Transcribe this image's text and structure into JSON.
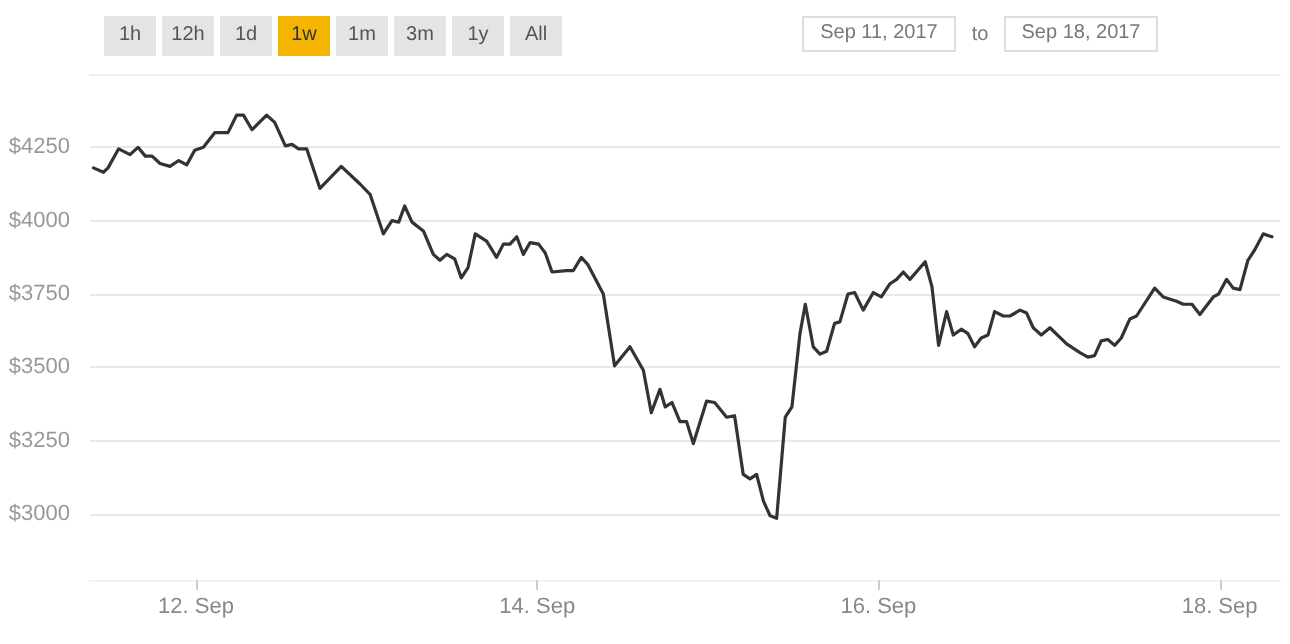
{
  "chart_data": {
    "type": "line",
    "annotations": [
      "1h",
      "12h",
      "1d",
      "1w",
      "1m",
      "3m",
      "1y",
      "All",
      "Sep 11, 2017",
      "to",
      "Sep 18, 2017"
    ],
    "xlim": [
      "2017-09-11T09:05",
      "2017-09-18T08:30"
    ],
    "xticks": [
      {
        "value": "2017-09-12",
        "label": "12. Sep"
      },
      {
        "value": "2017-09-14",
        "label": "14. Sep"
      },
      {
        "value": "2017-09-16",
        "label": "16. Sep"
      },
      {
        "value": "2017-09-18",
        "label": "18. Sep"
      }
    ],
    "ylim": [
      2775,
      4500
    ],
    "yticks": [
      {
        "value": 3000,
        "label": "$3000"
      },
      {
        "value": 3250,
        "label": "$3250"
      },
      {
        "value": 3500,
        "label": "$3500"
      },
      {
        "value": 3750,
        "label": "$3750"
      },
      {
        "value": 4000,
        "label": "$4000"
      },
      {
        "value": 4250,
        "label": "$4250"
      }
    ],
    "grid": "y",
    "marker": "none",
    "line_style": "solid",
    "series": [
      {
        "color": "#333333",
        "x": [
          "2017-09-11T09:34",
          "2017-09-11T10:58",
          "2017-09-11T11:37",
          "2017-09-11T13:07",
          "2017-09-11T14:43",
          "2017-09-11T15:50",
          "2017-09-11T16:52",
          "2017-09-11T17:49",
          "2017-09-11T18:56",
          "2017-09-11T20:20",
          "2017-09-11T21:34",
          "2017-09-11T22:41",
          "2017-09-11T23:49",
          "2017-09-12T01:02",
          "2017-09-12T02:38",
          "2017-09-12T04:30",
          "2017-09-12T05:43",
          "2017-09-12T06:40",
          "2017-09-12T07:53",
          "2017-09-12T09:56",
          "2017-09-12T11:04",
          "2017-09-12T12:34",
          "2017-09-12T13:30",
          "2017-09-12T14:26",
          "2017-09-12T15:34",
          "2017-09-12T17:26",
          "2017-09-12T20:26",
          "2017-09-12T23:04",
          "2017-09-13T00:29",
          "2017-09-13T02:21",
          "2017-09-13T03:34",
          "2017-09-13T04:31",
          "2017-09-13T05:21",
          "2017-09-13T06:23",
          "2017-09-13T07:59",
          "2017-09-13T09:23",
          "2017-09-13T10:19",
          "2017-09-13T11:16",
          "2017-09-13T12:23",
          "2017-09-13T13:19",
          "2017-09-13T14:16",
          "2017-09-13T15:17",
          "2017-09-13T16:53",
          "2017-09-13T18:17",
          "2017-09-13T19:14",
          "2017-09-13T20:10",
          "2017-09-13T21:07",
          "2017-09-13T22:03",
          "2017-09-13T22:59",
          "2017-09-14T00:12",
          "2017-09-14T01:08",
          "2017-09-14T02:05",
          "2017-09-14T04:08",
          "2017-09-14T05:05",
          "2017-09-14T06:12",
          "2017-09-14T07:08",
          "2017-09-14T09:18",
          "2017-09-14T10:53",
          "2017-09-14T13:03",
          "2017-09-14T14:56",
          "2017-09-14T16:03",
          "2017-09-14T17:16",
          "2017-09-14T18:01",
          "2017-09-14T18:58",
          "2017-09-14T20:05",
          "2017-09-14T21:01",
          "2017-09-14T21:58",
          "2017-09-14T23:50",
          "2017-09-15T00:58",
          "2017-09-15T02:39",
          "2017-09-15T03:46",
          "2017-09-15T04:59",
          "2017-09-15T05:56",
          "2017-09-15T06:52",
          "2017-09-15T07:49",
          "2017-09-15T08:44",
          "2017-09-15T09:41",
          "2017-09-15T10:54",
          "2017-09-15T11:50",
          "2017-09-15T12:58",
          "2017-09-15T13:43",
          "2017-09-15T14:50",
          "2017-09-15T15:47",
          "2017-09-15T16:43",
          "2017-09-15T17:50",
          "2017-09-15T18:35",
          "2017-09-15T19:43",
          "2017-09-15T20:39",
          "2017-09-15T21:52",
          "2017-09-15T23:17",
          "2017-09-16T00:25",
          "2017-09-16T01:38",
          "2017-09-16T02:34",
          "2017-09-16T03:30",
          "2017-09-16T04:26",
          "2017-09-16T06:35",
          "2017-09-16T07:32",
          "2017-09-16T08:28",
          "2017-09-16T09:36",
          "2017-09-16T10:32",
          "2017-09-16T11:40",
          "2017-09-16T12:36",
          "2017-09-16T13:32",
          "2017-09-16T14:28",
          "2017-09-16T15:25",
          "2017-09-16T16:21",
          "2017-09-16T17:34",
          "2017-09-16T18:31",
          "2017-09-16T19:55",
          "2017-09-16T20:51",
          "2017-09-16T21:47",
          "2017-09-16T22:55",
          "2017-09-17T00:08",
          "2017-09-17T02:29",
          "2017-09-17T04:21",
          "2017-09-17T05:29",
          "2017-09-17T06:25",
          "2017-09-17T07:21",
          "2017-09-17T08:17",
          "2017-09-17T09:14",
          "2017-09-17T10:10",
          "2017-09-17T11:23",
          "2017-09-17T12:19",
          "2017-09-17T14:52",
          "2017-09-17T16:04",
          "2017-09-17T17:57",
          "2017-09-17T18:53",
          "2017-09-17T20:07",
          "2017-09-17T21:14",
          "2017-09-17T22:10",
          "2017-09-17T23:07",
          "2017-09-17T23:52",
          "2017-09-18T00:59",
          "2017-09-18T01:55",
          "2017-09-18T02:52",
          "2017-09-18T03:59",
          "2017-09-18T04:56",
          "2017-09-18T06:09",
          "2017-09-18T07:22"
        ],
        "values": [
          4180,
          4165,
          4180,
          4245,
          4225,
          4250,
          4220,
          4220,
          4195,
          4185,
          4205,
          4190,
          4240,
          4250,
          4300,
          4300,
          4360,
          4360,
          4310,
          4360,
          4335,
          4255,
          4260,
          4245,
          4245,
          4110,
          4185,
          4125,
          4090,
          3955,
          4000,
          3995,
          4050,
          3995,
          3965,
          3885,
          3865,
          3885,
          3870,
          3805,
          3840,
          3955,
          3930,
          3875,
          3920,
          3920,
          3945,
          3885,
          3925,
          3920,
          3890,
          3825,
          3830,
          3830,
          3875,
          3850,
          3750,
          3505,
          3570,
          3490,
          3345,
          3425,
          3365,
          3380,
          3315,
          3315,
          3240,
          3385,
          3380,
          3330,
          3335,
          3135,
          3120,
          3135,
          3045,
          2995,
          2985,
          3330,
          3365,
          3615,
          3715,
          3570,
          3545,
          3555,
          3650,
          3655,
          3750,
          3755,
          3695,
          3755,
          3740,
          3785,
          3800,
          3825,
          3800,
          3860,
          3775,
          3575,
          3690,
          3610,
          3630,
          3615,
          3570,
          3600,
          3610,
          3690,
          3675,
          3675,
          3695,
          3685,
          3635,
          3610,
          3635,
          3580,
          3550,
          3535,
          3540,
          3590,
          3595,
          3575,
          3600,
          3665,
          3675,
          3770,
          3740,
          3725,
          3715,
          3715,
          3680,
          3710,
          3740,
          3750,
          3800,
          3770,
          3765,
          3865,
          3900,
          3955,
          3945
        ]
      }
    ]
  }
}
